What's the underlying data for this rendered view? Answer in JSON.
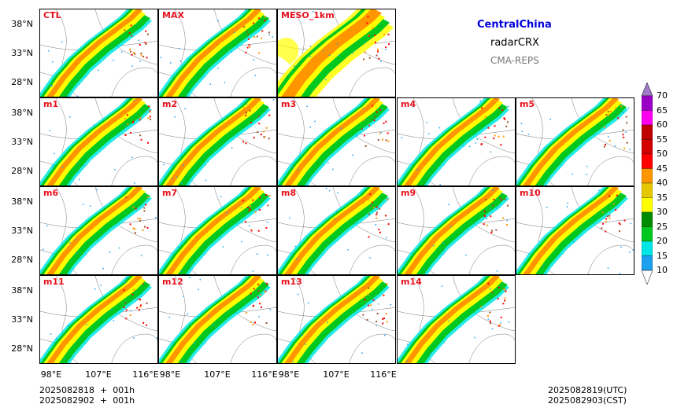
{
  "title": {
    "region": "CentralChina",
    "product": "radarCRX",
    "system": "CMA-REPS",
    "region_color": "#0000dd",
    "system_color": "#777777"
  },
  "panels": [
    "CTL",
    "MAX",
    "MESO_1km",
    "m1",
    "m2",
    "m3",
    "m4",
    "m5",
    "m6",
    "m7",
    "m8",
    "m9",
    "m10",
    "m11",
    "m12",
    "m13",
    "m14"
  ],
  "lat_ticks": [
    "38°N",
    "33°N",
    "28°N"
  ],
  "lon_ticks": [
    "98°E",
    "107°E",
    "116°E"
  ],
  "time_left": [
    "2025082818  +  001h",
    "2025082902  +  001h"
  ],
  "time_right": [
    "2025082819(UTC)",
    "2025082903(CST)"
  ],
  "colorbar": {
    "levels": [
      "10",
      "15",
      "20",
      "25",
      "30",
      "35",
      "40",
      "45",
      "50",
      "55",
      "60",
      "65",
      "70"
    ],
    "colors": [
      "#1ea0f0",
      "#00e6e6",
      "#00c81e",
      "#008c00",
      "#ffff00",
      "#e6c800",
      "#ff9600",
      "#ff0000",
      "#d40000",
      "#c00000",
      "#ff00f0",
      "#9a00c8",
      "#a07ac8"
    ],
    "extend": "both"
  },
  "label_color": "#e8101c"
}
